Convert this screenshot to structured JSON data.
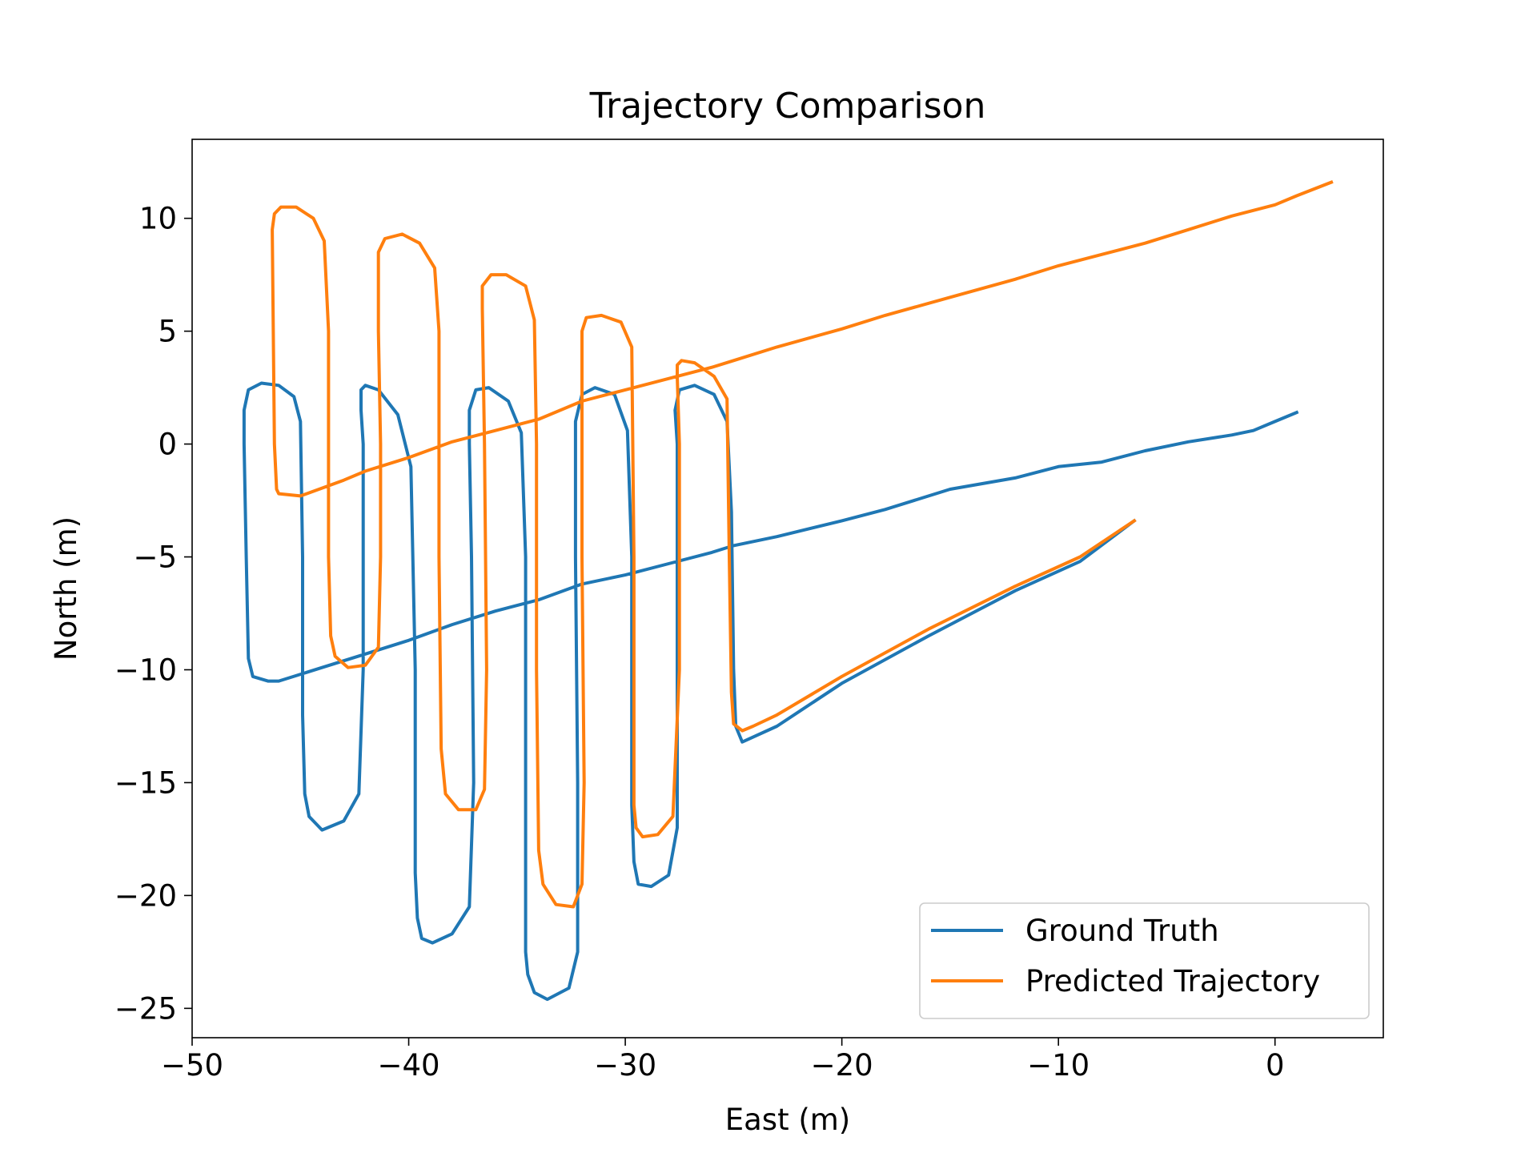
{
  "chart_data": {
    "type": "line",
    "title": "Trajectory Comparison",
    "xlabel": "East (m)",
    "ylabel": "North (m)",
    "xlim": [
      -50,
      5
    ],
    "ylim": [
      -26.3,
      13.5
    ],
    "xticks": [
      -50,
      -40,
      -30,
      -20,
      -10,
      0
    ],
    "yticks": [
      -25,
      -20,
      -15,
      -10,
      -5,
      0,
      5,
      10
    ],
    "grid": false,
    "legend_position": "lower right",
    "series": [
      {
        "name": "Ground Truth",
        "color": "#1f77b4",
        "x": [
          1.0,
          0.0,
          -1.0,
          -2.0,
          -4.0,
          -6.0,
          -8.0,
          -10.0,
          -12.0,
          -15.0,
          -18.0,
          -20.0,
          -23.0,
          -25.0,
          -26.0,
          -28.0,
          -30.0,
          -32.0,
          -34.0,
          -36.0,
          -38.0,
          -40.0,
          -42.0,
          -44.0,
          -46.0,
          -46.5,
          -47.2,
          -47.4,
          -47.5,
          -47.6,
          -47.6,
          -47.4,
          -46.8,
          -46.0,
          -45.3,
          -45.0,
          -44.9,
          -44.9,
          -44.8,
          -44.6,
          -44.0,
          -43.0,
          -42.3,
          -42.1,
          -42.1,
          -42.2,
          -42.2,
          -42.0,
          -41.4,
          -40.5,
          -39.9,
          -39.7,
          -39.7,
          -39.6,
          -39.4,
          -38.9,
          -38.0,
          -37.2,
          -37.0,
          -37.1,
          -37.2,
          -37.2,
          -36.9,
          -36.3,
          -35.4,
          -34.8,
          -34.6,
          -34.6,
          -34.6,
          -34.5,
          -34.2,
          -33.6,
          -32.6,
          -32.2,
          -32.2,
          -32.3,
          -32.3,
          -32.0,
          -31.4,
          -30.5,
          -29.9,
          -29.7,
          -29.7,
          -29.6,
          -29.4,
          -28.8,
          -28.0,
          -27.6,
          -27.6,
          -27.6,
          -27.7,
          -27.5,
          -26.8,
          -25.9,
          -25.3,
          -25.1,
          -25.0,
          -24.9,
          -24.6,
          -23.0,
          -20.0,
          -16.0,
          -12.0,
          -9.0,
          -6.5
        ],
        "y": [
          1.4,
          1.0,
          0.6,
          0.4,
          0.1,
          -0.3,
          -0.8,
          -1.0,
          -1.5,
          -2.0,
          -2.9,
          -3.4,
          -4.1,
          -4.5,
          -4.8,
          -5.3,
          -5.8,
          -6.2,
          -6.9,
          -7.4,
          -8.0,
          -8.7,
          -9.3,
          -9.9,
          -10.5,
          -10.5,
          -10.3,
          -9.5,
          -5.0,
          0.0,
          1.5,
          2.4,
          2.7,
          2.6,
          2.1,
          1.0,
          -5.0,
          -12.0,
          -15.5,
          -16.5,
          -17.1,
          -16.7,
          -15.5,
          -10.0,
          0.0,
          1.5,
          2.4,
          2.6,
          2.4,
          1.3,
          -1.0,
          -10.0,
          -19.0,
          -21.0,
          -21.9,
          -22.1,
          -21.7,
          -20.5,
          -15.0,
          -5.0,
          0.0,
          1.5,
          2.4,
          2.5,
          1.9,
          0.5,
          -5.0,
          -15.0,
          -22.5,
          -23.5,
          -24.3,
          -24.6,
          -24.1,
          -22.5,
          -15.0,
          -5.0,
          1.0,
          2.2,
          2.5,
          2.2,
          0.6,
          -5.0,
          -16.0,
          -18.5,
          -19.5,
          -19.6,
          -19.1,
          -17.0,
          -10.0,
          0.0,
          1.5,
          2.4,
          2.6,
          2.2,
          1.0,
          -3.0,
          -10.0,
          -12.5,
          -13.2,
          -12.5,
          -10.6,
          -8.5,
          -6.5,
          -5.2,
          -3.4
        ]
      },
      {
        "name": "Predicted Trajectory",
        "color": "#ff7f0e",
        "x": [
          2.6,
          1.0,
          0.0,
          -2.0,
          -4.0,
          -6.0,
          -8.0,
          -10.0,
          -12.0,
          -15.0,
          -18.0,
          -20.0,
          -23.0,
          -25.0,
          -26.0,
          -28.0,
          -30.0,
          -32.0,
          -34.0,
          -36.0,
          -38.0,
          -40.0,
          -42.0,
          -43.0,
          -45.0,
          -46.0,
          -46.1,
          -46.2,
          -46.3,
          -46.2,
          -45.9,
          -45.2,
          -44.4,
          -43.9,
          -43.7,
          -43.7,
          -43.6,
          -43.4,
          -42.8,
          -42.0,
          -41.4,
          -41.3,
          -41.3,
          -41.4,
          -41.4,
          -41.1,
          -40.3,
          -39.5,
          -38.8,
          -38.6,
          -38.6,
          -38.5,
          -38.3,
          -37.7,
          -36.9,
          -36.5,
          -36.4,
          -36.5,
          -36.6,
          -36.6,
          -36.2,
          -35.5,
          -34.6,
          -34.2,
          -34.1,
          -34.1,
          -34.0,
          -33.8,
          -33.2,
          -32.4,
          -32.0,
          -31.9,
          -32.0,
          -32.0,
          -31.8,
          -31.1,
          -30.2,
          -29.7,
          -29.6,
          -29.6,
          -29.5,
          -29.2,
          -28.5,
          -27.8,
          -27.5,
          -27.5,
          -27.6,
          -27.6,
          -27.4,
          -26.8,
          -25.9,
          -25.3,
          -25.2,
          -25.1,
          -25.0,
          -24.6,
          -24.1,
          -23.0,
          -20.0,
          -16.0,
          -12.0,
          -9.0,
          -6.5
        ],
        "y": [
          11.6,
          11.0,
          10.6,
          10.1,
          9.5,
          8.9,
          8.4,
          7.9,
          7.3,
          6.5,
          5.7,
          5.1,
          4.3,
          3.7,
          3.4,
          2.9,
          2.4,
          1.9,
          1.1,
          0.6,
          0.1,
          -0.6,
          -1.2,
          -1.6,
          -2.3,
          -2.2,
          -2.0,
          0.0,
          9.5,
          10.2,
          10.5,
          10.5,
          10.0,
          9.0,
          5.0,
          -5.0,
          -8.5,
          -9.4,
          -9.9,
          -9.8,
          -9.0,
          -5.0,
          0.0,
          5.0,
          8.5,
          9.1,
          9.3,
          8.9,
          7.8,
          5.0,
          -5.0,
          -13.5,
          -15.5,
          -16.2,
          -16.2,
          -15.3,
          -10.0,
          0.0,
          6.0,
          7.0,
          7.5,
          7.5,
          7.0,
          5.5,
          0.0,
          -10.0,
          -18.0,
          -19.5,
          -20.4,
          -20.5,
          -19.5,
          -15.0,
          -5.0,
          5.0,
          5.6,
          5.7,
          5.4,
          4.3,
          -5.0,
          -16.0,
          -17.0,
          -17.4,
          -17.3,
          -16.5,
          -10.0,
          0.0,
          3.0,
          3.5,
          3.7,
          3.6,
          3.0,
          2.0,
          -5.0,
          -11.0,
          -12.4,
          -12.7,
          -12.5,
          -12.0,
          -10.3,
          -8.2,
          -6.3,
          -5.0,
          -3.4
        ]
      }
    ]
  }
}
